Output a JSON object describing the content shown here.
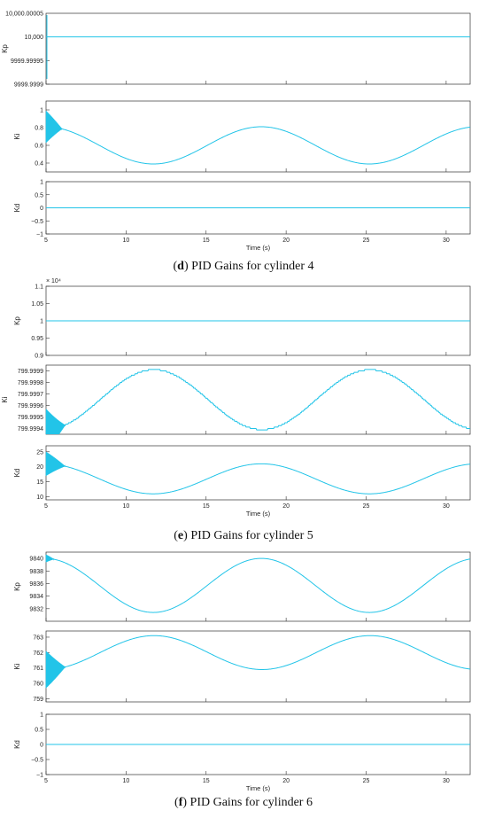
{
  "groups": [
    {
      "caption_letter": "d",
      "caption_text": "PID Gains for cylinder 4",
      "xlabel": "Time (s)",
      "panels": [
        {
          "ylabel": "Kp",
          "ylim": [
            9999.9999,
            10000.00005
          ],
          "yticks": [
            9999.9999,
            9999.99995,
            10000
          ],
          "ytick_labels": [
            "9999.9999",
            "9999.99995",
            "10,000"
          ],
          "top_label": "10,000.00005",
          "exponent_label": "",
          "shows_xticks": false,
          "signal": {
            "kind": "const",
            "value": 10000
          }
        },
        {
          "ylabel": "Ki",
          "ylim": [
            0.3,
            1.1
          ],
          "yticks": [
            0.4,
            0.6,
            0.8,
            1
          ],
          "ytick_labels": [
            "0.4",
            "0.6",
            "0.8",
            "1"
          ],
          "top_label": "",
          "exponent_label": "",
          "shows_xticks": false,
          "signal": {
            "kind": "sine",
            "mean": 0.6,
            "amp": 0.21,
            "period": 13.5,
            "min_at": 11.7,
            "step": 0,
            "osc_amp": 0.18,
            "osc_start": 5,
            "osc_end": 6.0
          }
        },
        {
          "ylabel": "Kd",
          "ylim": [
            -1,
            1
          ],
          "yticks": [
            -1,
            -0.5,
            0,
            0.5,
            1
          ],
          "ytick_labels": [
            "−1",
            "−0.5",
            "0",
            "0.5",
            "1"
          ],
          "top_label": "",
          "exponent_label": "",
          "shows_xticks": true,
          "signal": {
            "kind": "const",
            "value": 0
          }
        }
      ]
    },
    {
      "caption_letter": "e",
      "caption_text": "PID Gains for cylinder 5",
      "xlabel": "Time (s)",
      "panels": [
        {
          "ylabel": "Kp",
          "ylim": [
            0.9,
            1.1
          ],
          "yticks": [
            0.9,
            0.95,
            1,
            1.05,
            1.1
          ],
          "ytick_labels": [
            "0.9",
            "0.95",
            "1",
            "1.05",
            "1.1"
          ],
          "top_label": "",
          "exponent_label": "× 10⁴",
          "shows_xticks": false,
          "signal": {
            "kind": "const",
            "value": 1
          }
        },
        {
          "ylabel": "Ki",
          "ylim": [
            799.99935,
            799.99995
          ],
          "yticks": [
            799.9994,
            799.9995,
            799.9996,
            799.9997,
            799.9998,
            799.9999
          ],
          "ytick_labels": [
            "799.9994",
            "799.9995",
            "799.9996",
            "799.9997",
            "799.9998",
            "799.9999"
          ],
          "top_label": "",
          "exponent_label": "",
          "shows_xticks": false,
          "signal": {
            "kind": "sine",
            "mean": 799.99965,
            "amp": 0.00026,
            "period": 13.5,
            "min_at": 18.5,
            "step": 1.25e-05,
            "osc_amp": 0.00018,
            "osc_start": 5,
            "osc_end": 6.2
          }
        },
        {
          "ylabel": "Kd",
          "ylim": [
            9,
            27
          ],
          "yticks": [
            10,
            15,
            20,
            25
          ],
          "ytick_labels": [
            "10",
            "15",
            "20",
            "25"
          ],
          "top_label": "",
          "exponent_label": "",
          "shows_xticks": true,
          "signal": {
            "kind": "sine",
            "mean": 16,
            "amp": 5,
            "period": 13.5,
            "min_at": 11.7,
            "step": 0,
            "osc_amp": 4,
            "osc_start": 5,
            "osc_end": 6.2
          }
        }
      ]
    },
    {
      "caption_letter": "f",
      "caption_text": "PID Gains for cylinder 6",
      "xlabel": "Time (s)",
      "panels": [
        {
          "ylabel": "Kp",
          "ylim": [
            9830,
            9841
          ],
          "yticks": [
            9832,
            9834,
            9836,
            9838,
            9840
          ],
          "ytick_labels": [
            "9832",
            "9834",
            "9836",
            "9838",
            "9840"
          ],
          "top_label": "",
          "exponent_label": "",
          "shows_xticks": false,
          "signal": {
            "kind": "sine",
            "mean": 9835.7,
            "amp": 4.3,
            "period": 13.5,
            "min_at": 11.7,
            "step": 0,
            "osc_amp": 0.6,
            "osc_start": 5,
            "osc_end": 5.5
          }
        },
        {
          "ylabel": "Ki",
          "ylim": [
            758.8,
            763.4
          ],
          "yticks": [
            759,
            760,
            761,
            762,
            763
          ],
          "ytick_labels": [
            "759",
            "760",
            "761",
            "762",
            "763"
          ],
          "top_label": "",
          "exponent_label": "",
          "shows_xticks": false,
          "signal": {
            "kind": "sine",
            "mean": 762,
            "amp": 1.1,
            "period": 13.5,
            "min_at": 18.5,
            "step": 0,
            "osc_amp": 1.2,
            "osc_start": 5,
            "osc_end": 6.2
          }
        },
        {
          "ylabel": "Kd",
          "ylim": [
            -1,
            1
          ],
          "yticks": [
            -1,
            -0.5,
            0,
            0.5,
            1
          ],
          "ytick_labels": [
            "−1",
            "−0.5",
            "0",
            "0.5",
            "1"
          ],
          "top_label": "",
          "exponent_label": "",
          "shows_xticks": true,
          "signal": {
            "kind": "const",
            "value": 0
          }
        }
      ]
    }
  ],
  "chart_data": {
    "type": "line",
    "xlim": [
      5,
      31.5
    ],
    "xticks": [
      5,
      10,
      15,
      20,
      25,
      30
    ],
    "xtick_labels": [
      "5",
      "10",
      "15",
      "20",
      "25",
      "30"
    ],
    "line_color": "#22c4e8",
    "grid": false
  }
}
